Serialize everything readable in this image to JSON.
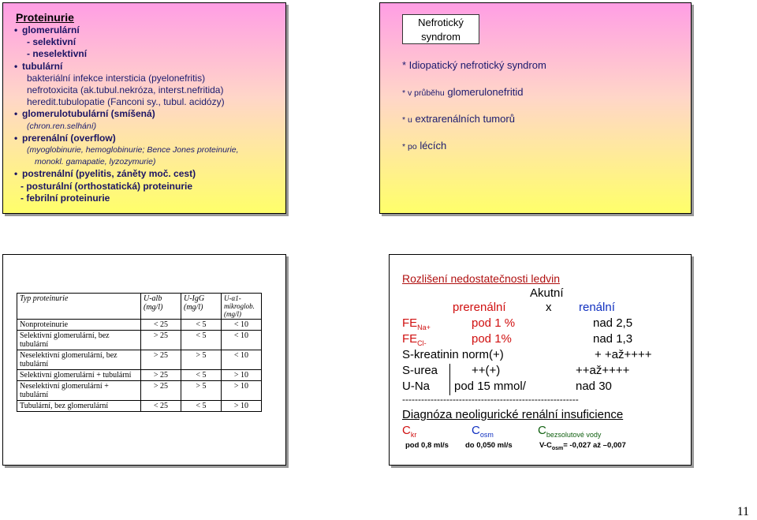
{
  "slide1": {
    "title": "Proteinurie",
    "l1": "glomerulární",
    "l2": "- selektivní",
    "l3": "- neselektivní",
    "l4": "tubulární",
    "l5": "bakteriální infekce intersticia (pyelonefritis)",
    "l6": "nefrotoxicita (ak.tubul.nekróza, interst.nefritida)",
    "l7": "heredit.tubulopatie (Fanconi sy., tubul. acidózy)",
    "l8": "glomerulotubulární (smíšená)",
    "l9": "(chron.ren.selhání)",
    "l10": "prerenální (overflow)",
    "l11": "(myoglobinurie, hemoglobinurie; Bence Jones proteinurie,",
    "l12": "monokl. gamapatie, lyzozymurie)",
    "l13": "postrenální (pyelitis, záněty moč. cest)",
    "l14": "- posturální (orthostatická) proteinurie",
    "l15": "- febrilní proteinurie"
  },
  "slide2": {
    "box": [
      "Nefrotický",
      "syndrom"
    ],
    "l1": "* Idiopatický nefrotický syndrom",
    "l2a": "* v průběhu",
    "l2b": "glomerulonefritid",
    "l3a": "* u",
    "l3b": "extrarenálních tumorů",
    "l4a": "* po",
    "l4b": "lécích"
  },
  "slide3": {
    "headers": [
      "Typ proteinurie",
      "U-alb (mg/l)",
      "U-IgG (mg/l)",
      "U-α1-mikroglob. (mg/l)"
    ],
    "rows": [
      [
        "Nonproteinurie",
        "< 25",
        "< 5",
        "< 10"
      ],
      [
        "Selektivní glomerulární, bez tubulární",
        "> 25",
        "< 5",
        "< 10"
      ],
      [
        "Neselektivní glomerulární, bez tubulární",
        "> 25",
        "> 5",
        "< 10"
      ],
      [
        "Selektivní glomerulární + tubulární",
        "> 25",
        "< 5",
        "> 10"
      ],
      [
        "Neselektivní glomerulární + tubulární",
        "> 25",
        "> 5",
        "> 10"
      ],
      [
        "Tubulární, bez glomerulární",
        "< 25",
        "< 5",
        "> 10"
      ]
    ]
  },
  "slide4": {
    "title": "Rozlišení nedostatečnosti ledvin",
    "akutni": "Akutní",
    "prerenal": "prerenální",
    "x": "x",
    "renal": "renální",
    "fena_label": "FE",
    "fena_sub": "Na+",
    "fena_pre": "pod 1 %",
    "fena_ren": "nad 2,5",
    "fecl_label": "FE",
    "fecl_sub": "Cl-",
    "fecl_pre": "pod 1%",
    "fecl_ren": "nad 1,3",
    "skreat": "S-kreatinin norm(+)",
    "skreat_ren": "+ +až++++",
    "surea": "S-urea",
    "surea_pre": "++(+)",
    "surea_ren": "++až++++",
    "una": "U-Na",
    "una_pre": "pod 15 mmol/",
    "una_ren": "nad 30",
    "dashes": "--------------------------------------------------------",
    "diag": "Diagnóza neoligurické renální insuficience",
    "ckr": "C",
    "ckr_sub": "kr",
    "cosm": "C",
    "cosm_sub": "osm",
    "cbez": "C",
    "cbez_sub": "bezsolutové vody",
    "v1": "pod 0,8 ml/s",
    "v2": "do 0,050 ml/s",
    "v3a": "V-C",
    "v3sub": "osm",
    "v3b": "= -0,027 až –0,007"
  },
  "page_number": "11"
}
